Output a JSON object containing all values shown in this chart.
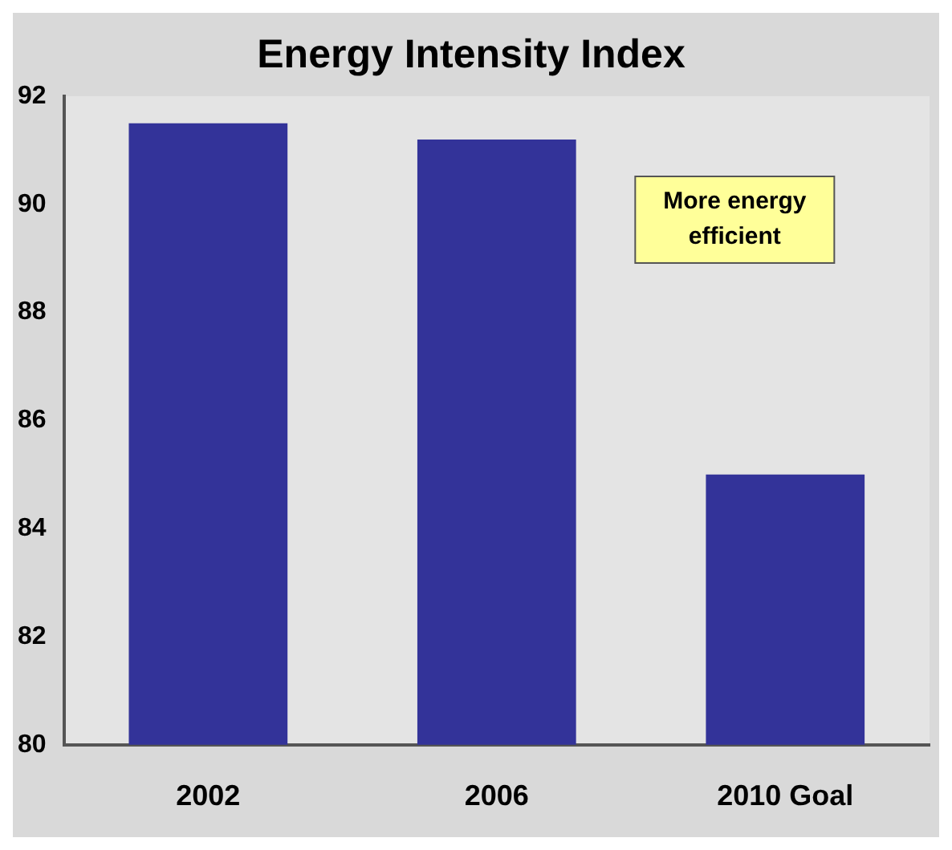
{
  "chart_data": {
    "type": "bar",
    "title": "Energy Intensity Index",
    "categories": [
      "2002",
      "2006",
      "2010 Goal"
    ],
    "values": [
      91.5,
      91.2,
      85
    ],
    "color": "#333399",
    "ylim": [
      80,
      92
    ],
    "yticks": [
      80,
      82,
      84,
      86,
      88,
      90,
      92
    ],
    "grid": false,
    "annotations": [
      "More energy efficient"
    ]
  }
}
